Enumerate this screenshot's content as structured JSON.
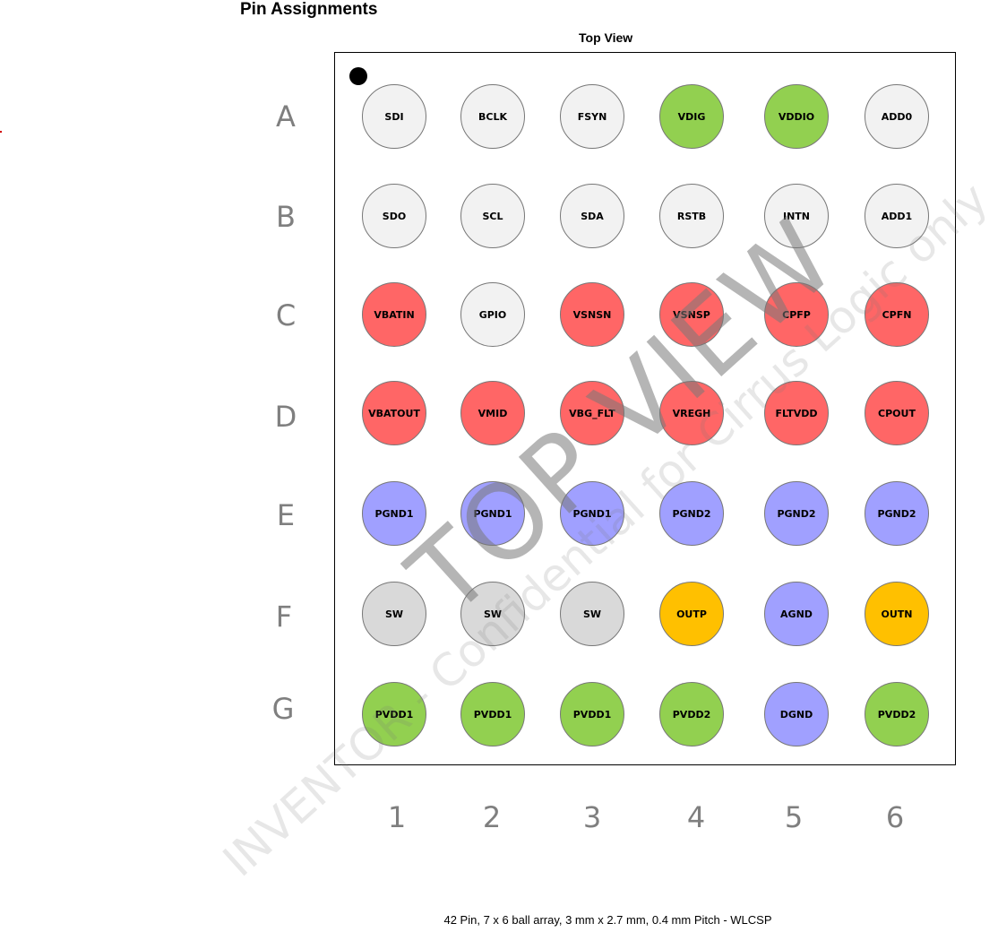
{
  "heading": "Pin Assignments",
  "view_title": "Top View",
  "caption": "42 Pin, 7 x 6 ball array, 3 mm x 2.7 mm, 0.4 mm Pitch - WLCSP",
  "watermark_main": "TOP VIEW",
  "watermark_secondary": "INVENTOR - Confidential for Cirrus Logic only",
  "rows": [
    "A",
    "B",
    "C",
    "D",
    "E",
    "F",
    "G"
  ],
  "columns": [
    "1",
    "2",
    "3",
    "4",
    "5",
    "6"
  ],
  "colors": {
    "signal": "#f2f2f2",
    "power_supply": "#92d050",
    "analog": "#ff6666",
    "ground": "#a0a0ff",
    "switch": "#d9d9d9",
    "output": "#ffc000"
  },
  "pins": [
    [
      "SDI",
      "BCLK",
      "FSYN",
      "VDIG",
      "VDDIO",
      "ADD0"
    ],
    [
      "SDO",
      "SCL",
      "SDA",
      "RSTB",
      "INTN",
      "ADD1"
    ],
    [
      "VBATIN",
      "GPIO",
      "VSNSN",
      "VSNSP",
      "CPFP",
      "CPFN"
    ],
    [
      "VBATOUT",
      "VMID",
      "VBG_FLT",
      "VREGH",
      "FLTVDD",
      "CPOUT"
    ],
    [
      "PGND1",
      "PGND1",
      "PGND1",
      "PGND2",
      "PGND2",
      "PGND2"
    ],
    [
      "SW",
      "SW",
      "SW",
      "OUTP",
      "AGND",
      "OUTN"
    ],
    [
      "PVDD1",
      "PVDD1",
      "PVDD1",
      "PVDD2",
      "DGND",
      "PVDD2"
    ]
  ],
  "pin_types": [
    [
      "signal",
      "signal",
      "signal",
      "power_supply",
      "power_supply",
      "signal"
    ],
    [
      "signal",
      "signal",
      "signal",
      "signal",
      "signal",
      "signal"
    ],
    [
      "analog",
      "signal",
      "analog",
      "analog",
      "analog",
      "analog"
    ],
    [
      "analog",
      "analog",
      "analog",
      "analog",
      "analog",
      "analog"
    ],
    [
      "ground",
      "ground",
      "ground",
      "ground",
      "ground",
      "ground"
    ],
    [
      "switch",
      "switch",
      "switch",
      "output",
      "ground",
      "output"
    ],
    [
      "power_supply",
      "power_supply",
      "power_supply",
      "power_supply",
      "ground",
      "power_supply"
    ]
  ]
}
